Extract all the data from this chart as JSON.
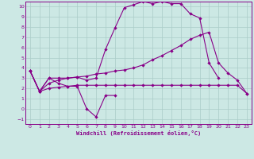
{
  "background_color": "#cce8e4",
  "line_color": "#880088",
  "xlabel": "Windchill (Refroidissement éolien,°C)",
  "xlim": [
    -0.5,
    23.5
  ],
  "ylim": [
    -1.5,
    10.5
  ],
  "xticks": [
    0,
    1,
    2,
    3,
    4,
    5,
    6,
    7,
    8,
    9,
    10,
    11,
    12,
    13,
    14,
    15,
    16,
    17,
    18,
    19,
    20,
    21,
    22,
    23
  ],
  "yticks": [
    -1,
    0,
    1,
    2,
    3,
    4,
    5,
    6,
    7,
    8,
    9,
    10
  ],
  "line1_x": [
    0,
    1,
    2,
    3,
    4,
    5,
    6,
    7,
    8,
    9
  ],
  "line1_y": [
    3.7,
    1.7,
    3.0,
    2.5,
    2.2,
    2.2,
    0.0,
    -0.8,
    1.3,
    1.3
  ],
  "line2_x": [
    0,
    1,
    2,
    3,
    4,
    5,
    6,
    7,
    8,
    9,
    10,
    11,
    12,
    13,
    14,
    15,
    16,
    17,
    18,
    19,
    20,
    21,
    22,
    23
  ],
  "line2_y": [
    3.7,
    1.7,
    2.0,
    2.1,
    2.2,
    2.3,
    2.3,
    2.3,
    2.3,
    2.3,
    2.3,
    2.3,
    2.3,
    2.3,
    2.3,
    2.3,
    2.3,
    2.3,
    2.3,
    2.3,
    2.3,
    2.3,
    2.3,
    1.5
  ],
  "line3_x": [
    0,
    1,
    2,
    3,
    4,
    5,
    6,
    7,
    8,
    9,
    10,
    11,
    12,
    13,
    14,
    15,
    16,
    17,
    18,
    19,
    20,
    21,
    22,
    23
  ],
  "line3_y": [
    3.7,
    1.7,
    2.5,
    2.8,
    3.0,
    3.1,
    3.2,
    3.4,
    3.5,
    3.7,
    3.8,
    4.0,
    4.3,
    4.8,
    5.2,
    5.7,
    6.2,
    6.8,
    7.2,
    7.5,
    4.5,
    3.5,
    2.8,
    1.5
  ],
  "line4_x": [
    0,
    1,
    2,
    3,
    4,
    5,
    6,
    7,
    8,
    9,
    10,
    11,
    12,
    13,
    14,
    15,
    16,
    17,
    18,
    19,
    20
  ],
  "line4_y": [
    3.7,
    1.7,
    3.0,
    3.0,
    3.0,
    3.1,
    2.8,
    3.0,
    5.8,
    7.9,
    9.9,
    10.2,
    10.5,
    10.3,
    10.5,
    10.3,
    10.3,
    9.3,
    8.9,
    4.5,
    3.0
  ]
}
